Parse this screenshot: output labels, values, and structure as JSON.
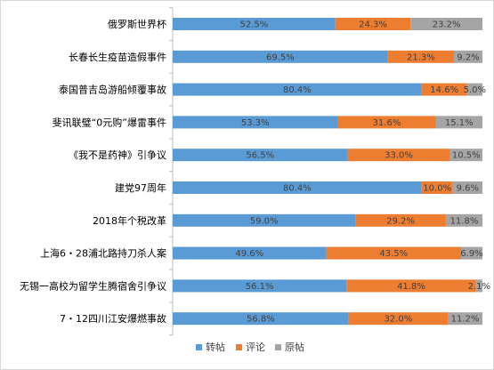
{
  "chart_data": {
    "type": "bar",
    "orientation": "horizontal",
    "stacked": "percent",
    "categories": [
      "俄罗斯世界杯",
      "长春长生疫苗造假事件",
      "泰国普吉岛游船倾覆事故",
      "斐讯联璧“0元购”爆雷事件",
      "《我不是药神》引争议",
      "建党97周年",
      "2018年个税改革",
      "上海6・28浦北路持刀杀人案",
      "无锡一高校为留学生腾宿舍引争议",
      "7・12四川江安爆燃事故"
    ],
    "series": [
      {
        "name": "转帖",
        "color": "#5b9bd5",
        "values": [
          52.5,
          69.5,
          80.4,
          53.3,
          56.5,
          80.4,
          59.0,
          49.6,
          56.1,
          56.8
        ],
        "labels": [
          "52.5%",
          "69.5%",
          "80.4%",
          "53.3%",
          "56.5%",
          "80.4%",
          "59.0%",
          "49.6%",
          "56.1%",
          "56.8%"
        ]
      },
      {
        "name": "评论",
        "color": "#ed7d31",
        "values": [
          24.3,
          21.3,
          14.6,
          31.6,
          33.0,
          10.0,
          29.2,
          43.5,
          41.8,
          32.0
        ],
        "labels": [
          "24.3%",
          "21.3%",
          "14.6%",
          "31.6%",
          "33.0%",
          "10.0%",
          "29.2%",
          "43.5%",
          "41.8%",
          "32.0%"
        ]
      },
      {
        "name": "原帖",
        "color": "#a5a5a5",
        "values": [
          23.2,
          9.2,
          5.0,
          15.1,
          10.5,
          9.6,
          11.8,
          6.9,
          2.1,
          11.2
        ],
        "labels": [
          "23.2%",
          "9.2%",
          "5.0%",
          "15.1%",
          "10.5%",
          "9.6%",
          "11.8%",
          "6.9%",
          "2.1%",
          "11.2%"
        ]
      }
    ],
    "xlim": [
      0,
      100
    ],
    "grid": false,
    "legend": "bottom"
  }
}
